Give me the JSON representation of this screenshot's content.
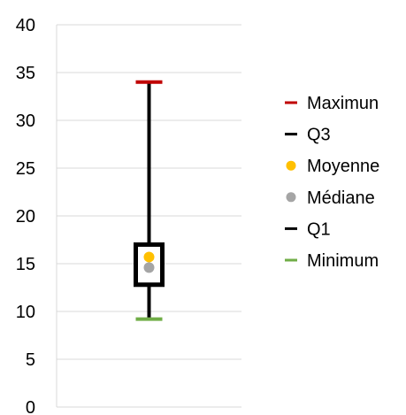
{
  "chart_data": {
    "type": "boxplot",
    "title": "",
    "xlabel": "",
    "ylabel": "",
    "ylim": [
      0,
      40
    ],
    "y_ticks": [
      0,
      5,
      10,
      15,
      20,
      25,
      30,
      35,
      40
    ],
    "y_tick_labels": [
      "0",
      "5",
      "10",
      "15",
      "20",
      "25",
      "30",
      "35",
      "40"
    ],
    "grid": "horizontal",
    "legend_position": "right",
    "stats": {
      "maximum": 34,
      "q3": 17,
      "mean": 15.7,
      "median": 14.6,
      "q1": 12.8,
      "minimum": 9.2
    },
    "legend": [
      {
        "key": "maximum",
        "label": "Maximun",
        "marker": "dash",
        "color": "#c00000"
      },
      {
        "key": "q3",
        "label": "Q3",
        "marker": "dash",
        "color": "#000000"
      },
      {
        "key": "mean",
        "label": "Moyenne",
        "marker": "dot",
        "color": "#ffc000"
      },
      {
        "key": "median",
        "label": "Médiane",
        "marker": "dot",
        "color": "#a5a5a5"
      },
      {
        "key": "q1",
        "label": "Q1",
        "marker": "dash",
        "color": "#000000"
      },
      {
        "key": "minimum",
        "label": "Minimum",
        "marker": "dash",
        "color": "#70ad47"
      }
    ],
    "colors": {
      "gridline": "#d9d9d9",
      "box": "#000000",
      "whisker": "#000000"
    }
  }
}
